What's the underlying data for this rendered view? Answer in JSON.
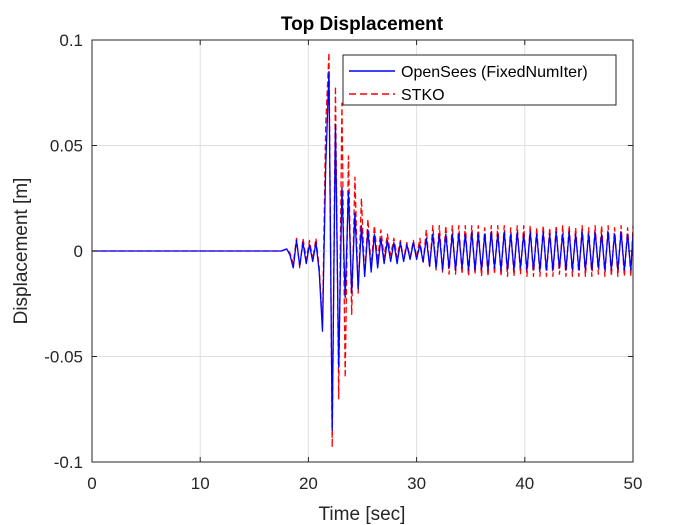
{
  "chart_data": {
    "type": "line",
    "title": "Top Displacement",
    "xlabel": "Time [sec]",
    "ylabel": "Displacement [m]",
    "xlim": [
      0,
      50
    ],
    "ylim": [
      -0.1,
      0.1
    ],
    "xticks": [
      0,
      10,
      20,
      30,
      40,
      50
    ],
    "xtick_labels": [
      "0",
      "10",
      "20",
      "30",
      "40",
      "50"
    ],
    "yticks": [
      -0.1,
      -0.05,
      0,
      0.05,
      0.1
    ],
    "ytick_labels": [
      "-0.1",
      "-0.05",
      "0",
      "0.05",
      "0.1"
    ],
    "grid": true,
    "legend_position": "top-right",
    "series": [
      {
        "name": "OpenSees (FixedNumIter)",
        "color": "#0000ff",
        "line_style": "solid",
        "x": [
          0,
          10,
          17.5,
          18.0,
          18.3,
          18.6,
          18.9,
          19.2,
          19.5,
          19.8,
          20.1,
          20.4,
          20.7,
          21.0,
          21.3,
          21.6,
          21.9,
          22.2,
          22.5,
          22.8,
          23.1,
          23.4,
          23.7,
          24.0,
          24.3,
          24.6,
          24.9,
          25.2,
          25.5,
          25.8,
          26.1,
          26.4,
          26.7,
          27.0,
          27.3,
          27.6,
          27.9,
          28.2,
          28.5,
          28.8,
          29.1,
          29.4,
          29.7,
          30.0,
          30.3,
          30.6,
          30.9,
          31.2,
          31.5,
          31.8,
          32.1,
          32.4,
          32.7,
          33.0,
          33.3,
          33.6,
          33.9,
          34.2,
          34.5,
          34.8,
          35.1,
          35.4,
          35.7,
          36.0,
          36.3,
          36.6,
          36.9,
          37.2,
          37.5,
          37.8,
          38.1,
          38.4,
          38.7,
          39.0,
          39.3,
          39.6,
          39.9,
          40.2,
          40.5,
          40.8,
          41.1,
          41.4,
          41.7,
          42.0,
          42.3,
          42.6,
          42.9,
          43.2,
          43.5,
          43.8,
          44.1,
          44.4,
          44.7,
          45.0,
          45.3,
          45.6,
          45.9,
          46.2,
          46.5,
          46.8,
          47.1,
          47.4,
          47.7,
          48.0,
          48.3,
          48.6,
          48.9,
          49.2,
          49.5,
          49.8,
          50.0
        ],
        "y": [
          0,
          0,
          0,
          0.001,
          -0.002,
          -0.008,
          0.005,
          -0.007,
          0.004,
          -0.006,
          0.003,
          -0.005,
          0.004,
          -0.01,
          -0.038,
          0.04,
          0.085,
          -0.085,
          0.06,
          -0.055,
          0.03,
          -0.022,
          0.028,
          -0.02,
          0.018,
          -0.018,
          0.012,
          -0.012,
          0.01,
          -0.01,
          0.008,
          -0.008,
          0.006,
          -0.006,
          0.005,
          -0.005,
          0.004,
          -0.006,
          0.004,
          -0.005,
          0.003,
          -0.004,
          0.004,
          -0.004,
          0.003,
          -0.005,
          0.006,
          -0.007,
          0.008,
          -0.008,
          0.008,
          -0.009,
          0.008,
          -0.008,
          0.008,
          -0.009,
          0.008,
          -0.008,
          0.008,
          -0.009,
          0.009,
          -0.009,
          0.008,
          -0.009,
          0.008,
          -0.009,
          0.009,
          -0.008,
          0.008,
          -0.009,
          0.009,
          -0.009,
          0.008,
          -0.009,
          0.009,
          -0.008,
          0.008,
          -0.009,
          0.009,
          -0.009,
          0.008,
          -0.009,
          0.009,
          -0.009,
          0.008,
          -0.009,
          0.009,
          -0.008,
          0.008,
          -0.009,
          0.009,
          -0.009,
          0.008,
          -0.009,
          0.009,
          -0.009,
          0.008,
          -0.009,
          0.009,
          -0.008,
          0.008,
          -0.009,
          0.009,
          -0.009,
          0.008,
          -0.009,
          0.009,
          -0.009,
          0.008,
          -0.009,
          0.008
        ]
      },
      {
        "name": "STKO",
        "color": "#ff0000",
        "line_style": "dashed",
        "x": [
          0,
          10,
          17.5,
          18.0,
          18.3,
          18.6,
          18.9,
          19.2,
          19.5,
          19.8,
          20.1,
          20.4,
          20.7,
          21.0,
          21.3,
          21.6,
          21.9,
          22.2,
          22.5,
          22.8,
          23.1,
          23.4,
          23.7,
          24.0,
          24.3,
          24.6,
          24.9,
          25.2,
          25.5,
          25.8,
          26.1,
          26.4,
          26.7,
          27.0,
          27.3,
          27.6,
          27.9,
          28.2,
          28.5,
          28.8,
          29.1,
          29.4,
          29.7,
          30.0,
          30.3,
          30.6,
          30.9,
          31.2,
          31.5,
          31.8,
          32.1,
          32.4,
          32.7,
          33.0,
          33.3,
          33.6,
          33.9,
          34.2,
          34.5,
          34.8,
          35.1,
          35.4,
          35.7,
          36.0,
          36.3,
          36.6,
          36.9,
          37.2,
          37.5,
          37.8,
          38.1,
          38.4,
          38.7,
          39.0,
          39.3,
          39.6,
          39.9,
          40.2,
          40.5,
          40.8,
          41.1,
          41.4,
          41.7,
          42.0,
          42.3,
          42.6,
          42.9,
          43.2,
          43.5,
          43.8,
          44.1,
          44.4,
          44.7,
          45.0,
          45.3,
          45.6,
          45.9,
          46.2,
          46.5,
          46.8,
          47.1,
          47.4,
          47.7,
          48.0,
          48.3,
          48.6,
          48.9,
          49.2,
          49.5,
          49.8,
          50.0
        ],
        "y": [
          0,
          0,
          0,
          0.001,
          -0.001,
          -0.006,
          0.006,
          -0.008,
          0.006,
          -0.004,
          0.005,
          -0.004,
          0.006,
          -0.008,
          -0.035,
          0.06,
          0.094,
          -0.093,
          0.078,
          -0.07,
          0.07,
          -0.06,
          0.045,
          -0.03,
          0.035,
          -0.02,
          0.025,
          -0.012,
          0.015,
          -0.008,
          0.012,
          -0.005,
          0.01,
          -0.003,
          0.008,
          -0.002,
          0.006,
          -0.003,
          0.005,
          -0.004,
          0.004,
          -0.003,
          0.005,
          -0.003,
          0.006,
          -0.006,
          0.01,
          -0.008,
          0.012,
          -0.009,
          0.012,
          -0.01,
          0.012,
          -0.011,
          0.012,
          -0.011,
          0.012,
          -0.011,
          0.012,
          -0.012,
          0.012,
          -0.011,
          0.012,
          -0.012,
          0.011,
          -0.012,
          0.012,
          -0.011,
          0.012,
          -0.012,
          0.012,
          -0.012,
          0.011,
          -0.012,
          0.012,
          -0.011,
          0.012,
          -0.012,
          0.012,
          -0.012,
          0.011,
          -0.012,
          0.012,
          -0.012,
          0.011,
          -0.012,
          0.012,
          -0.011,
          0.012,
          -0.012,
          0.012,
          -0.012,
          0.011,
          -0.012,
          0.012,
          -0.012,
          0.011,
          -0.012,
          0.012,
          -0.011,
          0.012,
          -0.012,
          0.012,
          -0.012,
          0.011,
          -0.012,
          0.012,
          -0.012,
          0.011,
          -0.012,
          0.012
        ]
      }
    ]
  }
}
